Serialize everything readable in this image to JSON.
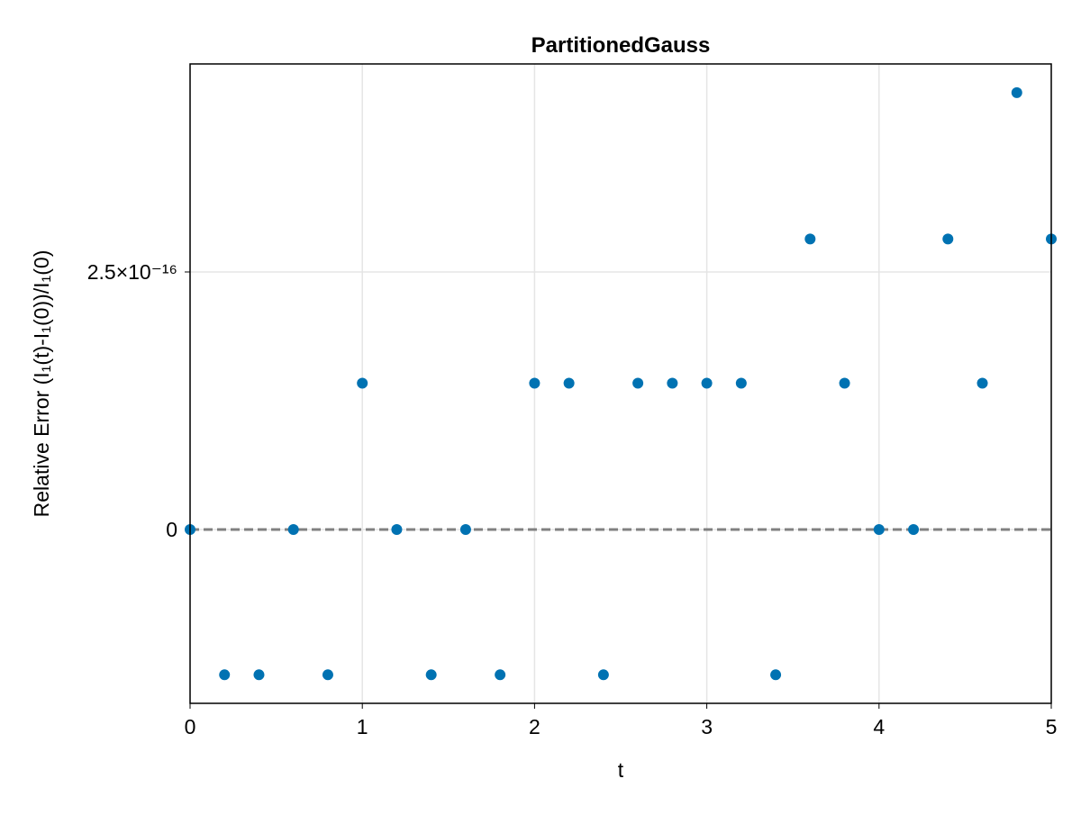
{
  "chart_data": {
    "type": "scatter",
    "title": "PartitionedGauss",
    "x_label": "t",
    "y_label": "Relative Error (I₁(t)-I₁(0))/I₁(0)",
    "x": [
      0,
      0.2,
      0.4,
      0.6,
      0.8,
      1.0,
      1.2,
      1.4,
      1.6,
      1.8,
      2.0,
      2.2,
      2.4,
      2.6,
      2.8,
      3.0,
      3.2,
      3.4,
      3.6,
      3.8,
      4.0,
      4.2,
      4.4,
      4.6,
      4.8,
      5.0
    ],
    "series": [
      {
        "color": "#0072b2",
        "values": [
          0,
          -1.41e-16,
          -1.41e-16,
          0,
          -1.41e-16,
          1.42e-16,
          0,
          -1.41e-16,
          0,
          -1.41e-16,
          1.42e-16,
          1.42e-16,
          -1.41e-16,
          1.42e-16,
          1.42e-16,
          1.42e-16,
          1.42e-16,
          -1.41e-16,
          2.82e-16,
          1.42e-16,
          0,
          0,
          2.82e-16,
          1.42e-16,
          4.24e-16,
          2.82e-16
        ]
      }
    ],
    "xlim": [
      0,
      5
    ],
    "xticks": [
      0,
      1,
      2,
      3,
      4,
      5
    ],
    "ylim": [
      -1.687e-16,
      4.519e-16
    ],
    "yticks": [
      0,
      {
        "value": 2.5e-16,
        "label": "2.5×10⁻¹⁶"
      }
    ],
    "hline": 0,
    "hline_color": "#808080",
    "grid": true
  }
}
